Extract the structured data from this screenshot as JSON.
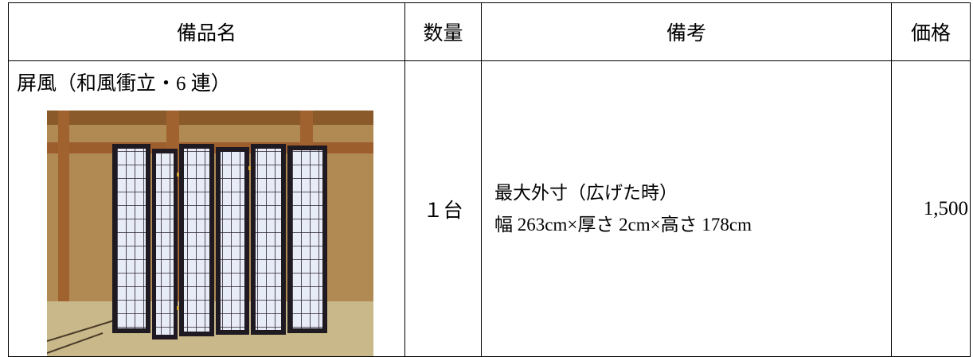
{
  "table": {
    "headers": [
      "備品名",
      "数量",
      "備考",
      "価格"
    ],
    "rows": [
      {
        "item": "屏風（和風衝立・6 連）",
        "quantity": "１台",
        "remarks": [
          "最大外寸（広げた時）",
          "幅 263cm×厚さ 2cm×高さ 178cm"
        ],
        "price": "1,500"
      }
    ]
  }
}
